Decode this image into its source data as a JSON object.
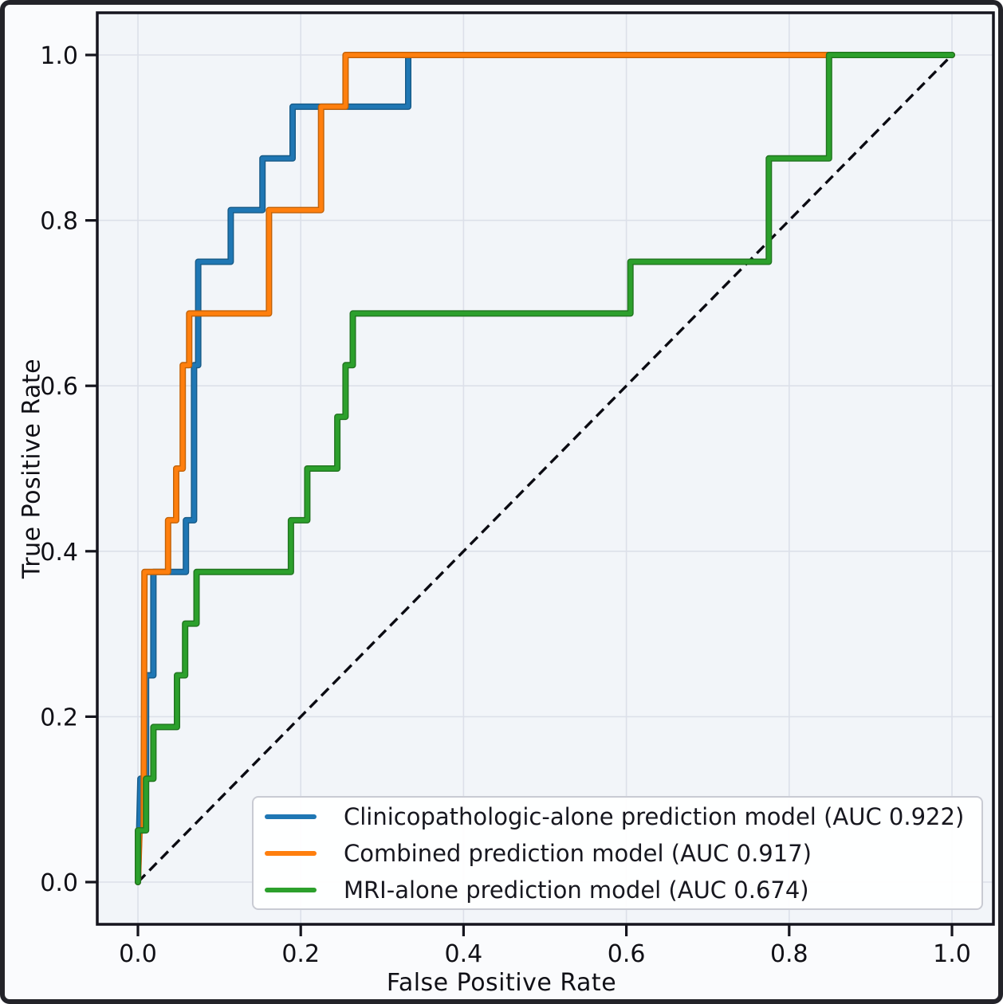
{
  "figure": {
    "kind": "ROC curve comparison plot",
    "background": "#fafbfd",
    "plot_background": "#f2f5f9",
    "grid_color": "#dce0e9",
    "spine_color": "#15151e",
    "text_color": "#101016"
  },
  "chart_data": {
    "type": "line",
    "subtype": "roc-step-curves",
    "title": "",
    "xlabel": "False Positive Rate",
    "ylabel": "True Positive Rate",
    "xlim": [
      0,
      1
    ],
    "ylim": [
      0,
      1
    ],
    "grid": true,
    "legend_position": "lower right",
    "xticks": [
      "0.0",
      "0.2",
      "0.4",
      "0.6",
      "0.8",
      "1.0"
    ],
    "yticks": [
      "0.0",
      "0.2",
      "0.4",
      "0.6",
      "0.8",
      "1.0"
    ],
    "series": [
      {
        "name": "Clinicopathologic-alone prediction model (AUC 0.922)",
        "auc": 0.922,
        "color": "#1f77b4",
        "edge": "#175a87",
        "points": [
          [
            0.0,
            0.0
          ],
          [
            0.003,
            0.125
          ],
          [
            0.01,
            0.125
          ],
          [
            0.01,
            0.25
          ],
          [
            0.019,
            0.25
          ],
          [
            0.019,
            0.375
          ],
          [
            0.059,
            0.375
          ],
          [
            0.059,
            0.4375
          ],
          [
            0.069,
            0.4375
          ],
          [
            0.069,
            0.625
          ],
          [
            0.074,
            0.625
          ],
          [
            0.074,
            0.75
          ],
          [
            0.114,
            0.75
          ],
          [
            0.114,
            0.8125
          ],
          [
            0.153,
            0.8125
          ],
          [
            0.153,
            0.875
          ],
          [
            0.19,
            0.875
          ],
          [
            0.19,
            0.9375
          ],
          [
            0.332,
            0.9375
          ],
          [
            0.332,
            1.0
          ],
          [
            1.0,
            1.0
          ]
        ]
      },
      {
        "name": "Combined prediction model (AUC 0.917)",
        "auc": 0.917,
        "color": "#ff7f0e",
        "edge": "#c26208",
        "points": [
          [
            0.0,
            0.0
          ],
          [
            0.002,
            0.0625
          ],
          [
            0.007,
            0.0625
          ],
          [
            0.008,
            0.375
          ],
          [
            0.037,
            0.375
          ],
          [
            0.037,
            0.4375
          ],
          [
            0.047,
            0.4375
          ],
          [
            0.047,
            0.5
          ],
          [
            0.055,
            0.5
          ],
          [
            0.055,
            0.625
          ],
          [
            0.063,
            0.625
          ],
          [
            0.063,
            0.6875
          ],
          [
            0.161,
            0.6875
          ],
          [
            0.161,
            0.8125
          ],
          [
            0.225,
            0.8125
          ],
          [
            0.225,
            0.9375
          ],
          [
            0.255,
            0.9375
          ],
          [
            0.255,
            1.0
          ],
          [
            1.0,
            1.0
          ]
        ]
      },
      {
        "name": "MRI-alone prediction model (AUC 0.674)",
        "auc": 0.674,
        "color": "#2ca02c",
        "edge": "#20741f",
        "points": [
          [
            0.0,
            0.0
          ],
          [
            0.0,
            0.0625
          ],
          [
            0.01,
            0.0625
          ],
          [
            0.01,
            0.125
          ],
          [
            0.019,
            0.125
          ],
          [
            0.019,
            0.1875
          ],
          [
            0.048,
            0.1875
          ],
          [
            0.048,
            0.25
          ],
          [
            0.058,
            0.25
          ],
          [
            0.058,
            0.3125
          ],
          [
            0.072,
            0.3125
          ],
          [
            0.072,
            0.375
          ],
          [
            0.188,
            0.375
          ],
          [
            0.188,
            0.4375
          ],
          [
            0.208,
            0.4375
          ],
          [
            0.208,
            0.5
          ],
          [
            0.245,
            0.5
          ],
          [
            0.245,
            0.5625
          ],
          [
            0.255,
            0.5625
          ],
          [
            0.255,
            0.625
          ],
          [
            0.264,
            0.625
          ],
          [
            0.264,
            0.6875
          ],
          [
            0.605,
            0.6875
          ],
          [
            0.605,
            0.75
          ],
          [
            0.775,
            0.75
          ],
          [
            0.775,
            0.875
          ],
          [
            0.849,
            0.875
          ],
          [
            0.849,
            1.0
          ],
          [
            1.0,
            1.0
          ]
        ]
      }
    ],
    "reference_line": {
      "name": "chance line",
      "style": "dashed",
      "color": "#0b0b12",
      "points": [
        [
          0,
          0
        ],
        [
          1,
          1
        ]
      ]
    }
  }
}
